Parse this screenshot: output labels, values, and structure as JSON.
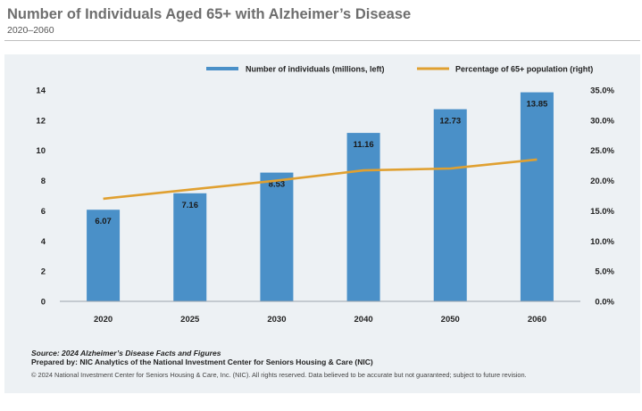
{
  "header": {
    "title": "Number of Individuals Aged 65+ with Alzheimer’s Disease",
    "subtitle": "2020–2060"
  },
  "footer": {
    "source": "Source: 2024 Alzheimer’s Disease Facts and Figures",
    "prepared_by": "Prepared by: NIC Analytics of the National Investment Center for Seniors Housing & Care (NIC)",
    "copyright": "© 2024 National Investment Center for Seniors Housing & Care, Inc. (NIC). All rights reserved. Data believed to be accurate but not guaranteed; subject to future revision."
  },
  "colors": {
    "bar": "#4a90c8",
    "line": "#e0a030",
    "panel": "#edf1f4"
  },
  "chart_data": {
    "type": "bar",
    "categories": [
      "2020",
      "2025",
      "2030",
      "2040",
      "2050",
      "2060"
    ],
    "series": [
      {
        "name": "Number of individuals (millions, left)",
        "type": "bar",
        "axis": "left",
        "values": [
          6.07,
          7.16,
          8.53,
          11.16,
          12.73,
          13.85
        ],
        "labels": [
          "6.07",
          "7.16",
          "8.53",
          "11.16",
          "12.73",
          "13.85"
        ]
      },
      {
        "name": "Percentage of 65+ population (right)",
        "type": "line",
        "axis": "right",
        "values": [
          17.0,
          18.5,
          20.0,
          21.7,
          22.0,
          23.5
        ]
      }
    ],
    "y_left": {
      "min": 0,
      "max": 14,
      "ticks": [
        0,
        2,
        4,
        6,
        8,
        10,
        12,
        14
      ],
      "tick_labels": [
        "0",
        "2",
        "4",
        "6",
        "8",
        "10",
        "12",
        "14"
      ]
    },
    "y_right": {
      "min": 0,
      "max": 35,
      "ticks": [
        0,
        5,
        10,
        15,
        20,
        25,
        30,
        35
      ],
      "tick_labels": [
        "0.0%",
        "5.0%",
        "10.0%",
        "15.0%",
        "20.0%",
        "25.0%",
        "30.0%",
        "35.0%"
      ]
    },
    "grid": false,
    "legend_position": "top-right"
  }
}
